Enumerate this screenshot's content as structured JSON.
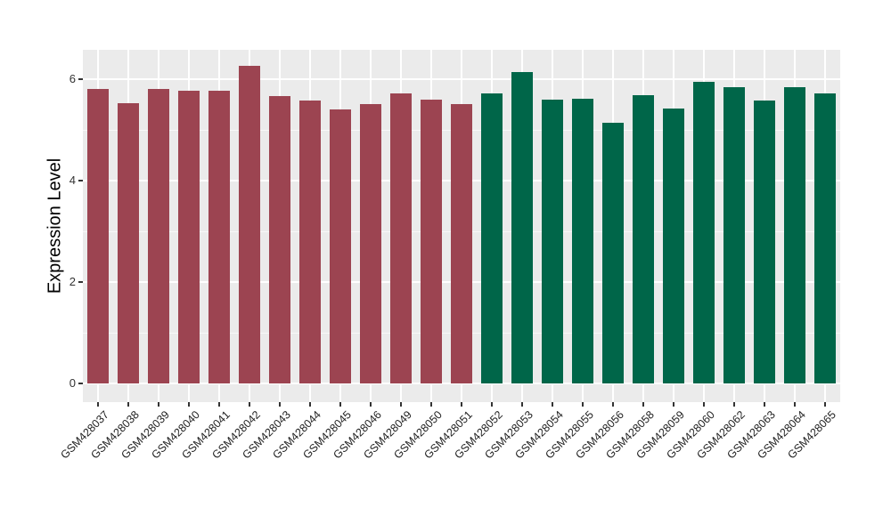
{
  "figure": {
    "background": "#FFFFFF",
    "kind": "static-plot-image"
  },
  "chart_data": {
    "type": "bar",
    "title": "",
    "xlabel": "",
    "ylabel": "Expression Level",
    "ylim": [
      0,
      6.6
    ],
    "yticks_major": [
      0,
      2,
      4,
      6
    ],
    "yticks_minor": [
      1,
      3,
      5
    ],
    "grid": "on",
    "legend_position": "none",
    "panel_background": "#EBEBEB",
    "gridline_color": "#FFFFFF",
    "axis_text_color": "#333333",
    "categories": [
      "GSM428037",
      "GSM428038",
      "GSM428039",
      "GSM428040",
      "GSM428041",
      "GSM428042",
      "GSM428043",
      "GSM428044",
      "GSM428045",
      "GSM428046",
      "GSM428049",
      "GSM428050",
      "GSM428051",
      "GSM428052",
      "GSM428053",
      "GSM428054",
      "GSM428055",
      "GSM428056",
      "GSM428058",
      "GSM428059",
      "GSM428060",
      "GSM428062",
      "GSM428063",
      "GSM428064",
      "GSM428065"
    ],
    "values": [
      5.82,
      5.53,
      5.82,
      5.78,
      5.78,
      6.26,
      5.67,
      5.58,
      5.41,
      5.52,
      5.72,
      5.61,
      5.51,
      5.72,
      6.15,
      5.6,
      5.62,
      5.15,
      5.69,
      5.43,
      5.95,
      5.84,
      5.58,
      5.85,
      5.72
    ],
    "bar_groups": [
      "group1",
      "group1",
      "group1",
      "group1",
      "group1",
      "group1",
      "group1",
      "group1",
      "group1",
      "group1",
      "group1",
      "group1",
      "group1",
      "group2",
      "group2",
      "group2",
      "group2",
      "group2",
      "group2",
      "group2",
      "group2",
      "group2",
      "group2",
      "group2",
      "group2"
    ],
    "group_colors": {
      "group1": "#9C4451",
      "group2": "#006649"
    }
  }
}
